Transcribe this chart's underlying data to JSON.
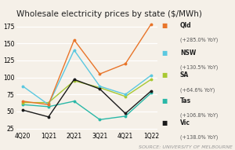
{
  "title": "Wholesale electricity prices by state ($/MWh)",
  "source": "SOURCE: UNIVERSITY OF MELBOURNE",
  "x_labels": [
    "4Q20",
    "1Q21",
    "2Q21",
    "3Q21",
    "4Q21",
    "1Q22"
  ],
  "series": {
    "Qld": {
      "values": [
        65,
        60,
        155,
        105,
        120,
        178
      ],
      "color": "#e8752a",
      "label1": "Qld",
      "label2": "(+285.0% YoY)",
      "zorder": 5
    },
    "NSW": {
      "values": [
        87,
        60,
        140,
        87,
        75,
        103
      ],
      "color": "#5bc8e0",
      "label1": "NSW",
      "label2": "(+130.5% YoY)",
      "zorder": 4
    },
    "SA": {
      "values": [
        63,
        63,
        95,
        85,
        72,
        97
      ],
      "color": "#a8c832",
      "label1": "SA",
      "label2": "(+64.6% YoY)",
      "zorder": 3
    },
    "Tas": {
      "values": [
        60,
        57,
        65,
        38,
        43,
        77
      ],
      "color": "#2ab8a8",
      "label1": "Tas",
      "label2": "(+106.8% YoY)",
      "zorder": 2
    },
    "Vic": {
      "values": [
        52,
        42,
        97,
        83,
        47,
        80
      ],
      "color": "#1a1a1a",
      "label1": "Vic",
      "label2": "(+138.0% YoY)",
      "zorder": 6
    }
  },
  "ylim": [
    22,
    185
  ],
  "yticks": [
    25,
    50,
    75,
    100,
    125,
    150,
    175
  ],
  "background_color": "#f5f0e8",
  "grid_color": "#ddddcc",
  "title_fontsize": 7.5,
  "source_fontsize": 4.5,
  "legend_fontsize": 5.5,
  "tick_fontsize": 5.5
}
